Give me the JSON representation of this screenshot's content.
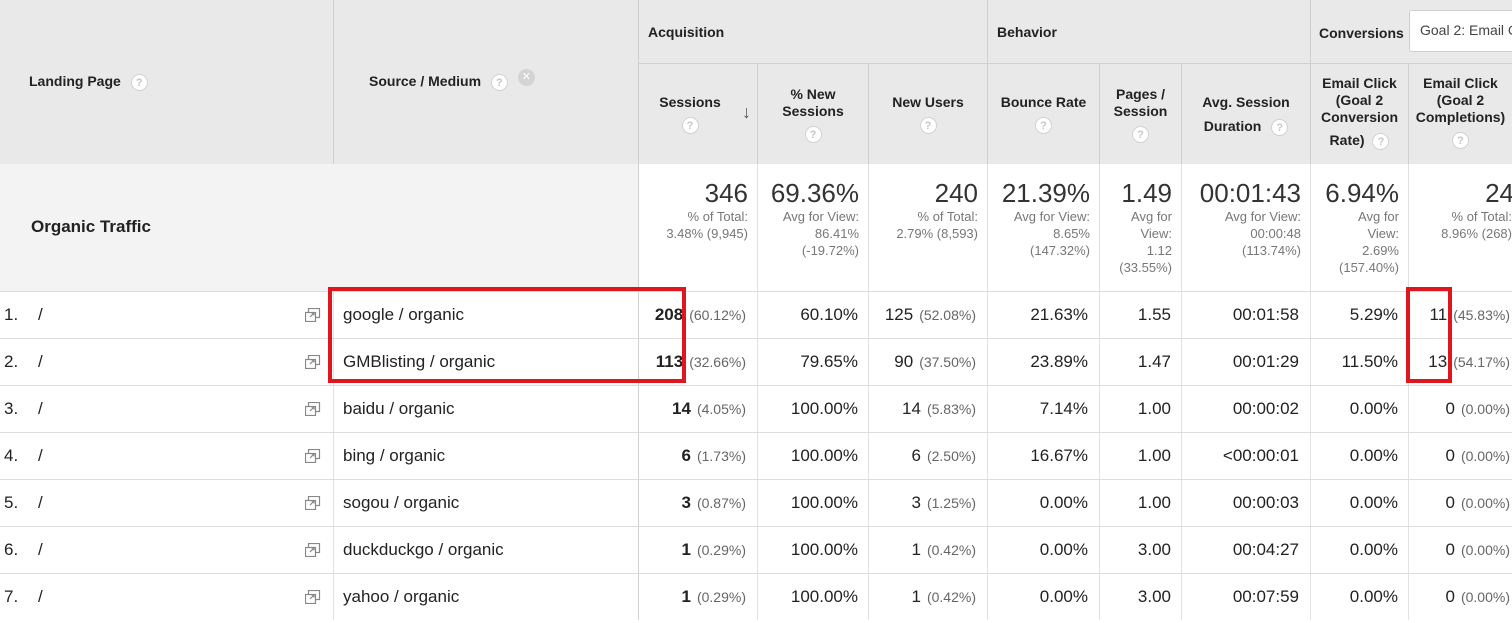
{
  "header": {
    "landing_page": "Landing Page",
    "source_medium": "Source / Medium",
    "groups": {
      "acquisition": "Acquisition",
      "behavior": "Behavior",
      "conversions": "Conversions"
    },
    "goal_select": "Goal 2: Email C",
    "columns": {
      "sessions": "Sessions",
      "new_sessions": [
        "% New",
        "Sessions"
      ],
      "new_users": "New Users",
      "bounce_rate": "Bounce Rate",
      "pages_session": [
        "Pages /",
        "Session"
      ],
      "avg_duration": [
        "Avg. Session",
        "Duration"
      ],
      "conv_rate": [
        "Email Click",
        "(Goal 2",
        "Conversion",
        "Rate)"
      ],
      "completions": [
        "Email Click",
        "(Goal 2",
        "Completions)"
      ]
    },
    "help_glyph": "?",
    "remove_glyph": "✕",
    "sort_glyph": "↓"
  },
  "summary": {
    "label": "Organic Traffic",
    "sessions": {
      "big": "346",
      "lines": [
        "% of Total:",
        "3.48% (9,945)"
      ]
    },
    "new_sessions": {
      "big": "69.36%",
      "lines": [
        "Avg for View:",
        "86.41%",
        "(-19.72%)"
      ]
    },
    "new_users": {
      "big": "240",
      "lines": [
        "% of Total:",
        "2.79% (8,593)"
      ]
    },
    "bounce_rate": {
      "big": "21.39%",
      "lines": [
        "Avg for View:",
        "8.65%",
        "(147.32%)"
      ]
    },
    "pages_session": {
      "big": "1.49",
      "lines": [
        "Avg for",
        "View:",
        "1.12",
        "(33.55%)"
      ]
    },
    "avg_duration": {
      "big": "00:01:43",
      "lines": [
        "Avg for View:",
        "00:00:48",
        "(113.74%)"
      ]
    },
    "conv_rate": {
      "big": "6.94%",
      "lines": [
        "Avg for",
        "View:",
        "2.69%",
        "(157.40%)"
      ]
    },
    "completions": {
      "big": "24",
      "lines": [
        "% of Total:",
        "8.96% (268)"
      ]
    }
  },
  "rows": [
    {
      "num": "1.",
      "page": "/",
      "source": "google / organic",
      "sessions": "208",
      "sessions_pct": "(60.12%)",
      "new_sessions": "60.10%",
      "new_users": "125",
      "new_users_pct": "(52.08%)",
      "bounce": "21.63%",
      "pages": "1.55",
      "duration": "00:01:58",
      "conv_rate": "5.29%",
      "completions": "11",
      "completions_pct": "(45.83%)"
    },
    {
      "num": "2.",
      "page": "/",
      "source": "GMBlisting / organic",
      "sessions": "113",
      "sessions_pct": "(32.66%)",
      "new_sessions": "79.65%",
      "new_users": "90",
      "new_users_pct": "(37.50%)",
      "bounce": "23.89%",
      "pages": "1.47",
      "duration": "00:01:29",
      "conv_rate": "11.50%",
      "completions": "13",
      "completions_pct": "(54.17%)"
    },
    {
      "num": "3.",
      "page": "/",
      "source": "baidu / organic",
      "sessions": "14",
      "sessions_pct": "(4.05%)",
      "new_sessions": "100.00%",
      "new_users": "14",
      "new_users_pct": "(5.83%)",
      "bounce": "7.14%",
      "pages": "1.00",
      "duration": "00:00:02",
      "conv_rate": "0.00%",
      "completions": "0",
      "completions_pct": "(0.00%)"
    },
    {
      "num": "4.",
      "page": "/",
      "source": "bing / organic",
      "sessions": "6",
      "sessions_pct": "(1.73%)",
      "new_sessions": "100.00%",
      "new_users": "6",
      "new_users_pct": "(2.50%)",
      "bounce": "16.67%",
      "pages": "1.00",
      "duration": "<00:00:01",
      "conv_rate": "0.00%",
      "completions": "0",
      "completions_pct": "(0.00%)"
    },
    {
      "num": "5.",
      "page": "/",
      "source": "sogou / organic",
      "sessions": "3",
      "sessions_pct": "(0.87%)",
      "new_sessions": "100.00%",
      "new_users": "3",
      "new_users_pct": "(1.25%)",
      "bounce": "0.00%",
      "pages": "1.00",
      "duration": "00:00:03",
      "conv_rate": "0.00%",
      "completions": "0",
      "completions_pct": "(0.00%)"
    },
    {
      "num": "6.",
      "page": "/",
      "source": "duckduckgo / organic",
      "sessions": "1",
      "sessions_pct": "(0.29%)",
      "new_sessions": "100.00%",
      "new_users": "1",
      "new_users_pct": "(0.42%)",
      "bounce": "0.00%",
      "pages": "3.00",
      "duration": "00:04:27",
      "conv_rate": "0.00%",
      "completions": "0",
      "completions_pct": "(0.00%)"
    },
    {
      "num": "7.",
      "page": "/",
      "source": "yahoo / organic",
      "sessions": "1",
      "sessions_pct": "(0.29%)",
      "new_sessions": "100.00%",
      "new_users": "1",
      "new_users_pct": "(0.42%)",
      "bounce": "0.00%",
      "pages": "3.00",
      "duration": "00:07:59",
      "conv_rate": "0.00%",
      "completions": "0",
      "completions_pct": "(0.00%)"
    }
  ],
  "colors": {
    "header_bg": "#e9e9e9",
    "highlight": "#e0161e"
  }
}
